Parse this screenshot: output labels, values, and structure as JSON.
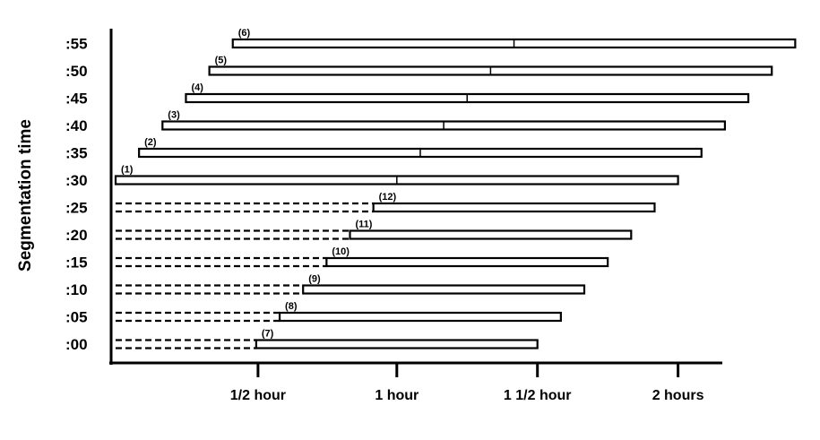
{
  "y_axis": {
    "title": "Segmentation time",
    "ticks": [
      ":00",
      ":05",
      ":10",
      ":15",
      ":20",
      ":25",
      ":30",
      ":35",
      ":40",
      ":45",
      ":50",
      ":55"
    ]
  },
  "x_axis": {
    "ticks": [
      {
        "label": "1/2 hour",
        "minutes": 30
      },
      {
        "label": "1 hour",
        "minutes": 60
      },
      {
        "label": "1 1/2 hour",
        "minutes": 90
      },
      {
        "label": "2 hours",
        "minutes": 120
      }
    ]
  },
  "segments": [
    {
      "id": "(7)",
      "row": 0,
      "start": 0,
      "solid_start": 30,
      "end": 90,
      "split": null
    },
    {
      "id": "(8)",
      "row": 1,
      "start": 0,
      "solid_start": 35,
      "end": 95,
      "split": null
    },
    {
      "id": "(9)",
      "row": 2,
      "start": 0,
      "solid_start": 40,
      "end": 100,
      "split": null
    },
    {
      "id": "(10)",
      "row": 3,
      "start": 0,
      "solid_start": 45,
      "end": 105,
      "split": null
    },
    {
      "id": "(11)",
      "row": 4,
      "start": 0,
      "solid_start": 50,
      "end": 110,
      "split": null
    },
    {
      "id": "(12)",
      "row": 5,
      "start": 0,
      "solid_start": 55,
      "end": 115,
      "split": null
    },
    {
      "id": "(1)",
      "row": 6,
      "start": 0,
      "solid_start": 0,
      "end": 120,
      "split": 60
    },
    {
      "id": "(2)",
      "row": 7,
      "start": 5,
      "solid_start": 5,
      "end": 125,
      "split": 65
    },
    {
      "id": "(3)",
      "row": 8,
      "start": 10,
      "solid_start": 10,
      "end": 130,
      "split": 70
    },
    {
      "id": "(4)",
      "row": 9,
      "start": 15,
      "solid_start": 15,
      "end": 135,
      "split": 75
    },
    {
      "id": "(5)",
      "row": 10,
      "start": 20,
      "solid_start": 20,
      "end": 140,
      "split": 80
    },
    {
      "id": "(6)",
      "row": 11,
      "start": 25,
      "solid_start": 25,
      "end": 145,
      "split": 85
    }
  ]
}
